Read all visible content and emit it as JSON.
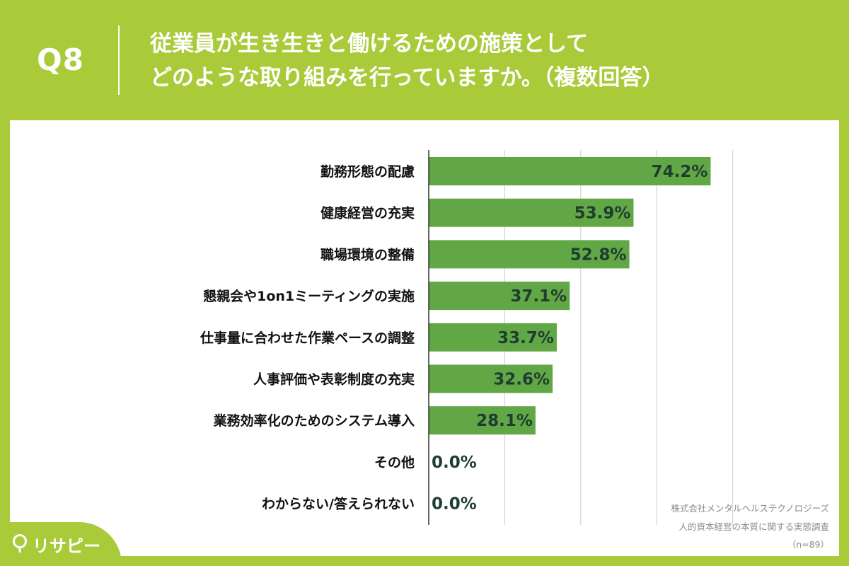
{
  "header": {
    "q_label": "Q8",
    "title_line1": "従業員が生き生きと働けるための施策として",
    "title_line2": "どのような取り組みを行っていますか。（複数回答）"
  },
  "source": {
    "line1": "株式会社メンタルヘルステクノロジーズ",
    "line2": "人的資本経営の本質に関する実態調査",
    "line3": "（n=89）"
  },
  "logo": {
    "text": "リサピー"
  },
  "colors": {
    "background": "#a9cb3a",
    "bar": "#62a745",
    "grid": "#cccccc",
    "value_text": "#1f3d2f"
  },
  "chart_data": {
    "type": "bar",
    "orientation": "horizontal",
    "categories": [
      "勤務形態の配慮",
      "健康経営の充実",
      "職場環境の整備",
      "懇親会や1on1ミーティングの実施",
      "仕事量に合わせた作業ペースの調整",
      "人事評価や表彰制度の充実",
      "業務効率化のためのシステム導入",
      "その他",
      "わからない/答えられない"
    ],
    "values": [
      74.2,
      53.9,
      52.8,
      37.1,
      33.7,
      32.6,
      28.1,
      0.0,
      0.0
    ],
    "value_labels": [
      "74.2%",
      "53.9%",
      "52.8%",
      "37.1%",
      "33.7%",
      "32.6%",
      "28.1%",
      "0.0%",
      "0.0%"
    ],
    "xlim": [
      0,
      100
    ],
    "grid": true,
    "legend": "none"
  }
}
